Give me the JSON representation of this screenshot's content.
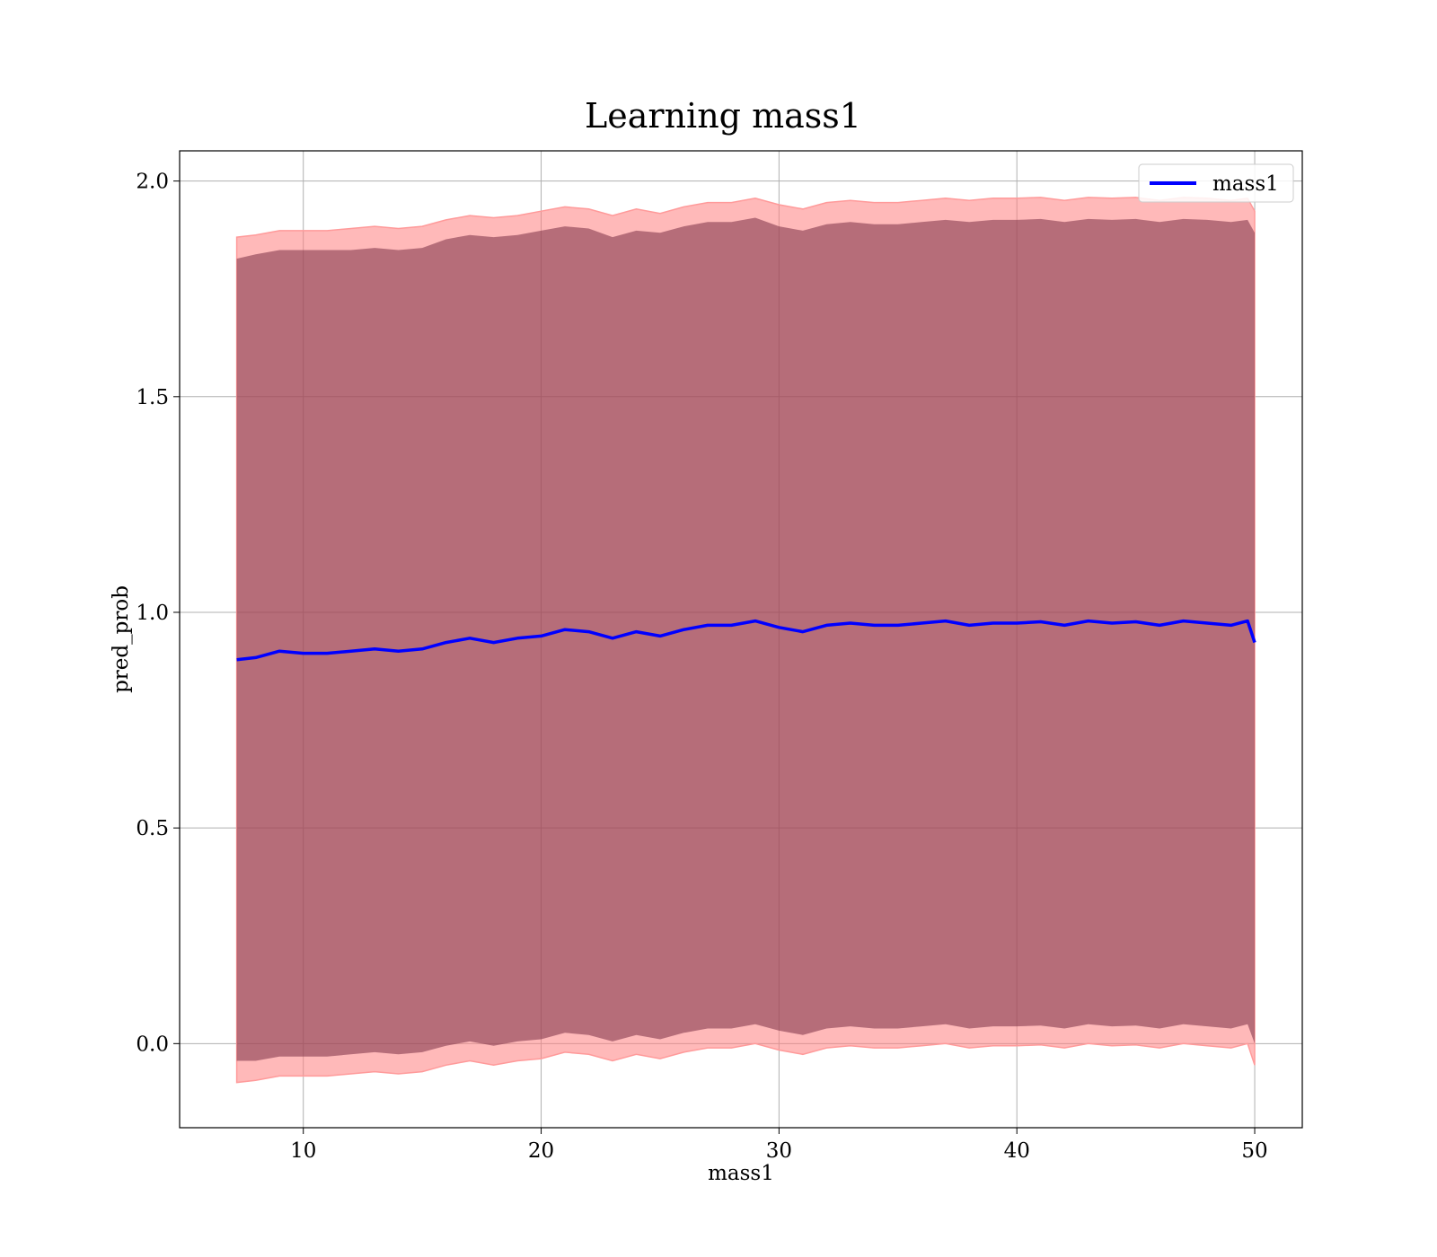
{
  "chart_data": {
    "type": "line",
    "title": "Learning mass1",
    "xlabel": "mass1",
    "ylabel": "pred_prob",
    "xlim": [
      4.8,
      52.0
    ],
    "ylim": [
      -0.195,
      2.07
    ],
    "xticks": [
      10,
      20,
      30,
      40,
      50
    ],
    "yticks": [
      0.0,
      0.5,
      1.0,
      1.5,
      2.0
    ],
    "ytick_labels": [
      "0.0",
      "0.5",
      "1.0",
      "1.5",
      "2.0"
    ],
    "xtick_labels": [
      "10",
      "20",
      "30",
      "40",
      "50"
    ],
    "grid": true,
    "legend": {
      "position": "top-right",
      "entries": [
        "mass1"
      ]
    },
    "colors": {
      "line": "#0000ff",
      "band_inner": "#7a2f45",
      "band_outer": "#ff8080",
      "band_outer_edge": "#ff9a9a",
      "grid": "#b0b0b0"
    },
    "series": [
      {
        "name": "mass1",
        "x": [
          7.2,
          8,
          9,
          10,
          11,
          12,
          13,
          14,
          15,
          16,
          17,
          18,
          19,
          20,
          21,
          22,
          23,
          24,
          25,
          26,
          27,
          28,
          29,
          30,
          31,
          32,
          33,
          34,
          35,
          36,
          37,
          38,
          39,
          40,
          41,
          42,
          43,
          44,
          45,
          46,
          47,
          48,
          49,
          49.7,
          50
        ],
        "mean": [
          0.89,
          0.895,
          0.91,
          0.905,
          0.905,
          0.91,
          0.915,
          0.91,
          0.915,
          0.93,
          0.94,
          0.93,
          0.94,
          0.945,
          0.96,
          0.955,
          0.94,
          0.955,
          0.945,
          0.96,
          0.97,
          0.97,
          0.98,
          0.965,
          0.955,
          0.97,
          0.975,
          0.97,
          0.97,
          0.975,
          0.98,
          0.97,
          0.975,
          0.975,
          0.978,
          0.97,
          0.98,
          0.975,
          0.978,
          0.97,
          0.98,
          0.975,
          0.97,
          0.98,
          0.93
        ],
        "inner_upper": [
          1.82,
          1.83,
          1.84,
          1.84,
          1.84,
          1.84,
          1.845,
          1.84,
          1.845,
          1.865,
          1.875,
          1.87,
          1.875,
          1.885,
          1.895,
          1.89,
          1.87,
          1.885,
          1.88,
          1.895,
          1.905,
          1.905,
          1.915,
          1.895,
          1.885,
          1.9,
          1.905,
          1.9,
          1.9,
          1.905,
          1.91,
          1.905,
          1.91,
          1.91,
          1.912,
          1.905,
          1.912,
          1.91,
          1.912,
          1.905,
          1.912,
          1.91,
          1.905,
          1.91,
          1.88
        ],
        "inner_lower": [
          -0.04,
          -0.04,
          -0.03,
          -0.03,
          -0.03,
          -0.025,
          -0.02,
          -0.025,
          -0.02,
          -0.005,
          0.005,
          -0.005,
          0.005,
          0.01,
          0.025,
          0.02,
          0.005,
          0.02,
          0.01,
          0.025,
          0.035,
          0.035,
          0.045,
          0.03,
          0.02,
          0.035,
          0.04,
          0.035,
          0.035,
          0.04,
          0.045,
          0.035,
          0.04,
          0.04,
          0.042,
          0.035,
          0.045,
          0.04,
          0.042,
          0.035,
          0.045,
          0.04,
          0.035,
          0.045,
          0.0
        ],
        "outer_upper": [
          1.87,
          1.875,
          1.885,
          1.885,
          1.885,
          1.89,
          1.895,
          1.89,
          1.895,
          1.91,
          1.92,
          1.915,
          1.92,
          1.93,
          1.94,
          1.935,
          1.92,
          1.935,
          1.925,
          1.94,
          1.95,
          1.95,
          1.96,
          1.945,
          1.935,
          1.95,
          1.955,
          1.95,
          1.95,
          1.955,
          1.96,
          1.955,
          1.96,
          1.96,
          1.962,
          1.955,
          1.962,
          1.96,
          1.962,
          1.955,
          1.962,
          1.96,
          1.955,
          1.96,
          1.93
        ],
        "outer_lower": [
          -0.09,
          -0.085,
          -0.075,
          -0.075,
          -0.075,
          -0.07,
          -0.065,
          -0.07,
          -0.065,
          -0.05,
          -0.04,
          -0.05,
          -0.04,
          -0.035,
          -0.02,
          -0.025,
          -0.04,
          -0.025,
          -0.035,
          -0.02,
          -0.01,
          -0.01,
          0.0,
          -0.015,
          -0.025,
          -0.01,
          -0.005,
          -0.01,
          -0.01,
          -0.005,
          0.0,
          -0.01,
          -0.005,
          -0.005,
          -0.003,
          -0.01,
          0.0,
          -0.005,
          -0.003,
          -0.01,
          0.0,
          -0.005,
          -0.01,
          0.0,
          -0.05
        ]
      }
    ]
  }
}
